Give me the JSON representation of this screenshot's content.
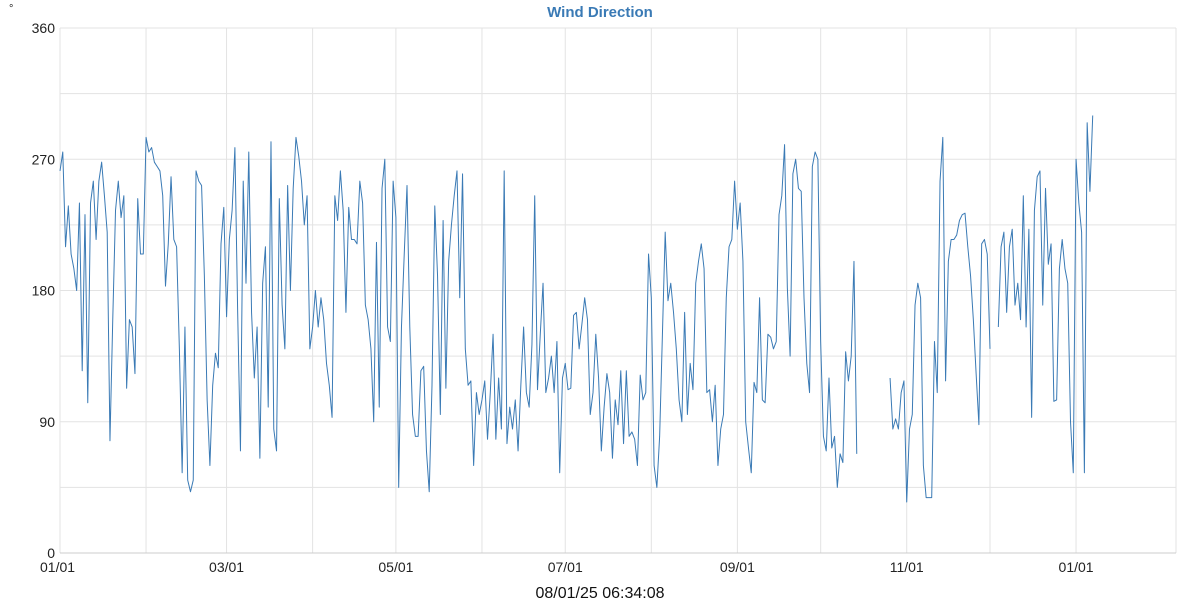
{
  "chart_data": {
    "type": "line",
    "title": "Wind Direction",
    "y_unit": "°",
    "timestamp": "08/01/25 06:34:08",
    "ylim": [
      0,
      360
    ],
    "y_ticks": [
      {
        "value": 0,
        "label": "0"
      },
      {
        "value": 45,
        "label": ""
      },
      {
        "value": 90,
        "label": "90"
      },
      {
        "value": 135,
        "label": ""
      },
      {
        "value": 180,
        "label": "180"
      },
      {
        "value": 225,
        "label": ""
      },
      {
        "value": 270,
        "label": "270"
      },
      {
        "value": 315,
        "label": ""
      },
      {
        "value": 360,
        "label": "360"
      }
    ],
    "xlim": [
      "2024-01-01",
      "2025-02-06"
    ],
    "x_ticks": [
      {
        "date": "2024-01-01",
        "label": "01/01"
      },
      {
        "date": "2024-02-01",
        "label": ""
      },
      {
        "date": "2024-03-01",
        "label": "03/01"
      },
      {
        "date": "2024-04-01",
        "label": ""
      },
      {
        "date": "2024-05-01",
        "label": "05/01"
      },
      {
        "date": "2024-06-01",
        "label": ""
      },
      {
        "date": "2024-07-01",
        "label": "07/01"
      },
      {
        "date": "2024-08-01",
        "label": ""
      },
      {
        "date": "2024-09-01",
        "label": "09/01"
      },
      {
        "date": "2024-10-01",
        "label": ""
      },
      {
        "date": "2024-11-01",
        "label": "11/01"
      },
      {
        "date": "2024-12-01",
        "label": ""
      },
      {
        "date": "2025-01-01",
        "label": "01/01"
      }
    ],
    "grid": true,
    "line_color": "#3a7ab5",
    "series": [
      {
        "segments": [
          {
            "start": "2024-01-01",
            "values": [
              262,
              275,
              210,
              238,
              205,
              195,
              180,
              240,
              125,
              232,
              103,
              240,
              255,
              215,
              255,
              268,
              245,
              220,
              77,
              160,
              235,
              255,
              230,
              245,
              113,
              160,
              155,
              123,
              243,
              205,
              205,
              285,
              275,
              278,
              268,
              265,
              262,
              245,
              183,
              212,
              258,
              215,
              210,
              140,
              55,
              155,
              50,
              42,
              50,
              262,
              255,
              252,
              190,
              105,
              60,
              115,
              137,
              127,
              212,
              237,
              162,
              215,
              235,
              278,
              165,
              70,
              255,
              185,
              275,
              165,
              120,
              155,
              65,
              185,
              210,
              100,
              282,
              85,
              70,
              243,
              170,
              140,
              252,
              180,
              250,
              285,
              272,
              255,
              225,
              245,
              140,
              155,
              180,
              155,
              175,
              160,
              130,
              115,
              93,
              245,
              228,
              262,
              235,
              165,
              237,
              215,
              215,
              212,
              255,
              240,
              170,
              160,
              140,
              90,
              213,
              100,
              250,
              270,
              155,
              145,
              255,
              230,
              45,
              155,
              205,
              252,
              155,
              95,
              80,
              80,
              125,
              128,
              70,
              42,
              115,
              238,
              190,
              95,
              228,
              113,
              200,
              225,
              245,
              262,
              175,
              260,
              140,
              115,
              118,
              60,
              110,
              95,
              105,
              118,
              78,
              110,
              150,
              78,
              120,
              85,
              262,
              75,
              100,
              85,
              105,
              70,
              115,
              155,
              110,
              100,
              143,
              245,
              112,
              150,
              185,
              110,
              120,
              135,
              110,
              145,
              55,
              120,
              130,
              112,
              113,
              163,
              165,
              140,
              157,
              175,
              160,
              95,
              110,
              150,
              120,
              70,
              100,
              123,
              110,
              65,
              105,
              88,
              125,
              75,
              125,
              80,
              83,
              78,
              60,
              122,
              105,
              110,
              205,
              175,
              60,
              45,
              80,
              150,
              220,
              173,
              185,
              165,
              140,
              105,
              90,
              165,
              95,
              130,
              112,
              185,
              200,
              212,
              195,
              110,
              112,
              90,
              115,
              60,
              85,
              95,
              175,
              210,
              215,
              255,
              222,
              240,
              200,
              90,
              72,
              55,
              117,
              110,
              175,
              105,
              103,
              150,
              148,
              140,
              145,
              232,
              245,
              280,
              182,
              135,
              260,
              270,
              250,
              248,
              175,
              130,
              110,
              265,
              275,
              270,
              145,
              80,
              70,
              120,
              72,
              80,
              45,
              68,
              62,
              138,
              118,
              135,
              200,
              68
            ]
          },
          {
            "start": "2024-10-26",
            "values": [
              120,
              85,
              92,
              85,
              110,
              118,
              35,
              85,
              95,
              170,
              185,
              175,
              60,
              38,
              38,
              38,
              145,
              110,
              255,
              285,
              118,
              200,
              215,
              215,
              218,
              228,
              232,
              233,
              210,
              190,
              160,
              123,
              88,
              212,
              215,
              205,
              140
            ]
          },
          {
            "start": "2024-12-04",
            "values": [
              155,
              210,
              220,
              165,
              210,
              222,
              170,
              185,
              160,
              245,
              155,
              222,
              93,
              235,
              258,
              262,
              170,
              250,
              198,
              212,
              104,
              105,
              195,
              215,
              195,
              185,
              90,
              55,
              270,
              240,
              220,
              55,
              295,
              248,
              300
            ]
          }
        ]
      }
    ]
  }
}
